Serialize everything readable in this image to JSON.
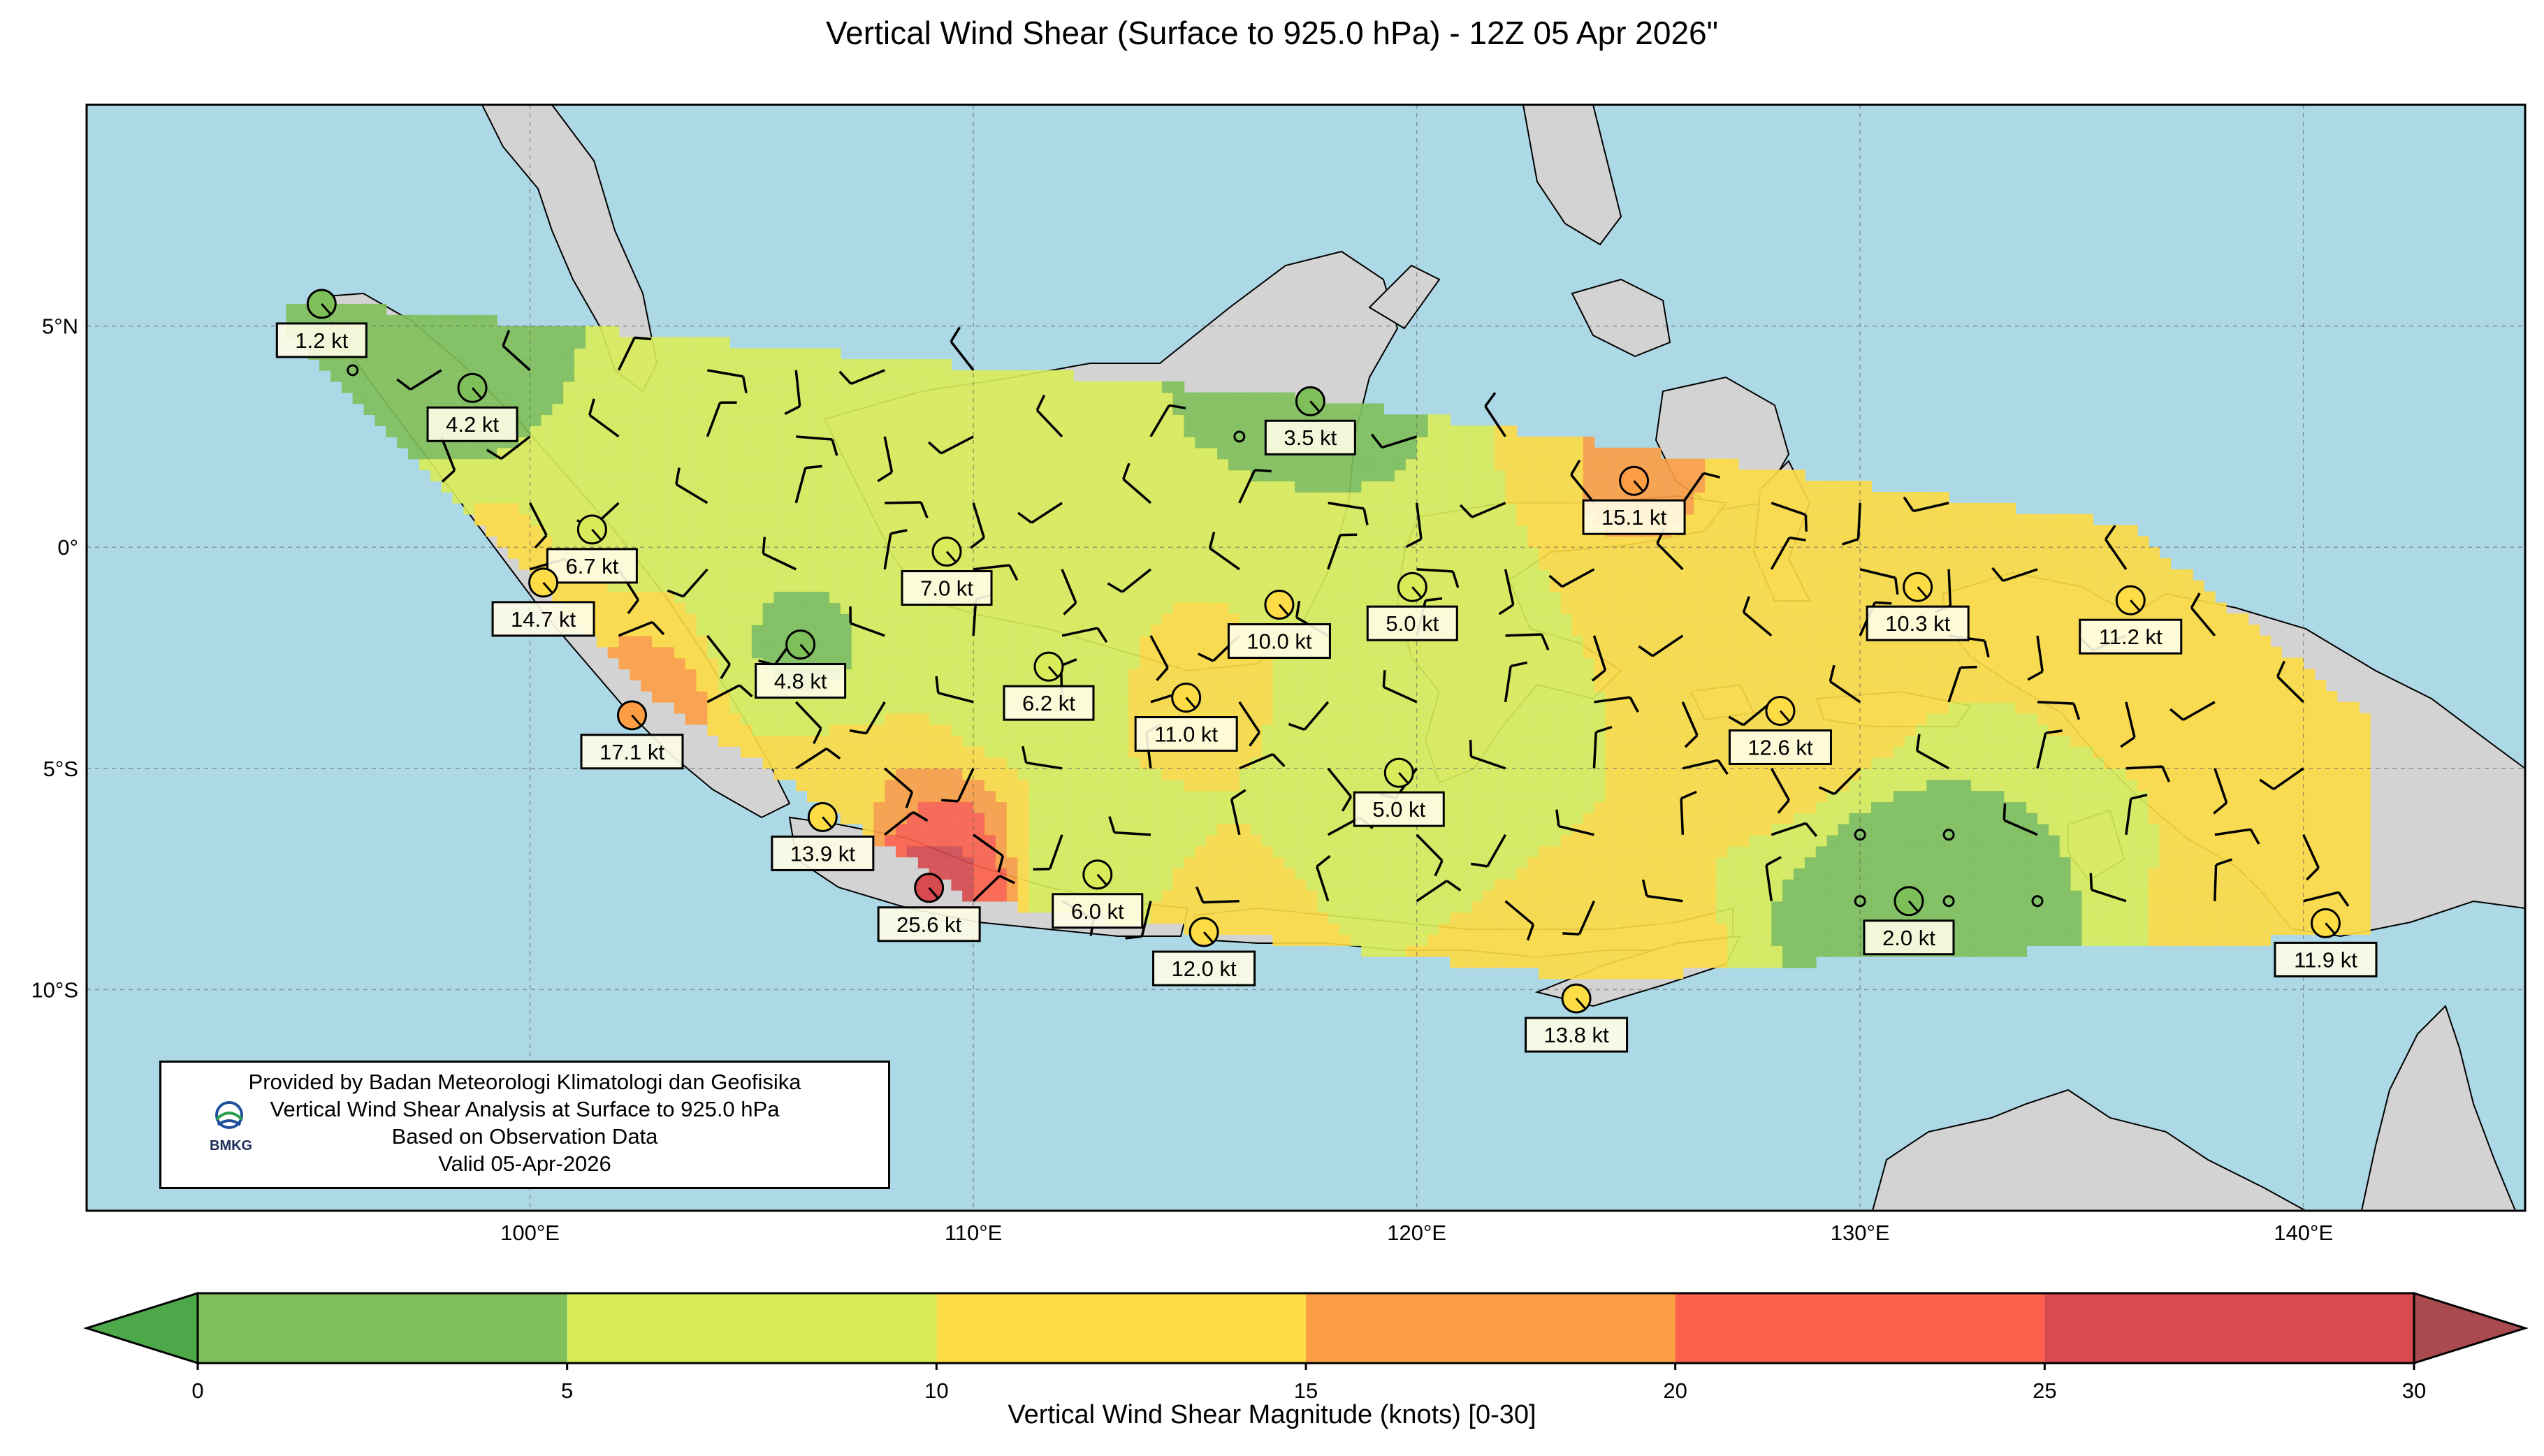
{
  "title": "Vertical Wind Shear (Surface to 925.0 hPa) - 12Z 05 Apr 2026\"",
  "map": {
    "lon_range": [
      90,
      145
    ],
    "lat_range": [
      -15,
      10
    ],
    "lon_ticks": [
      {
        "lon": 100,
        "label": "100°E"
      },
      {
        "lon": 110,
        "label": "110°E"
      },
      {
        "lon": 120,
        "label": "120°E"
      },
      {
        "lon": 130,
        "label": "130°E"
      },
      {
        "lon": 140,
        "label": "140°E"
      }
    ],
    "lat_ticks": [
      {
        "lat": 5,
        "label": "5°N"
      },
      {
        "lat": 0,
        "label": "0°"
      },
      {
        "lat": -5,
        "label": "5°S"
      },
      {
        "lat": -10,
        "label": "10°S"
      }
    ],
    "ocean_color": "#add8e6",
    "land_color": "#d3d3d3"
  },
  "stations": [
    {
      "lon": 95.3,
      "lat": 5.5,
      "value": 1.2,
      "label": "1.2 kt"
    },
    {
      "lon": 98.7,
      "lat": 3.6,
      "value": 4.2,
      "label": "4.2 kt"
    },
    {
      "lon": 101.4,
      "lat": 0.4,
      "value": 6.7,
      "label": "6.7 kt"
    },
    {
      "lon": 100.3,
      "lat": -0.8,
      "value": 14.7,
      "label": "14.7 kt"
    },
    {
      "lon": 102.3,
      "lat": -3.8,
      "value": 17.1,
      "label": "17.1 kt"
    },
    {
      "lon": 106.1,
      "lat": -2.2,
      "value": 4.8,
      "label": "4.8 kt"
    },
    {
      "lon": 106.6,
      "lat": -6.1,
      "value": 13.9,
      "label": "13.9 kt"
    },
    {
      "lon": 109.0,
      "lat": -7.7,
      "value": 25.6,
      "label": "25.6 kt"
    },
    {
      "lon": 109.4,
      "lat": -0.1,
      "value": 7.0,
      "label": "7.0 kt"
    },
    {
      "lon": 111.7,
      "lat": -2.7,
      "value": 6.2,
      "label": "6.2 kt"
    },
    {
      "lon": 112.8,
      "lat": -7.4,
      "value": 6.0,
      "label": "6.0 kt"
    },
    {
      "lon": 114.8,
      "lat": -3.4,
      "value": 11.0,
      "label": "11.0 kt"
    },
    {
      "lon": 115.2,
      "lat": -8.7,
      "value": 12.0,
      "label": "12.0 kt"
    },
    {
      "lon": 116.9,
      "lat": -1.3,
      "value": 10.0,
      "label": "10.0 kt"
    },
    {
      "lon": 117.6,
      "lat": 3.3,
      "value": 3.5,
      "label": "3.5 kt"
    },
    {
      "lon": 119.9,
      "lat": -0.9,
      "value": 5.0,
      "label": "5.0 kt"
    },
    {
      "lon": 119.6,
      "lat": -5.1,
      "value": 5.0,
      "label": "5.0 kt"
    },
    {
      "lon": 123.6,
      "lat": -10.2,
      "value": 13.8,
      "label": "13.8 kt"
    },
    {
      "lon": 124.9,
      "lat": 1.5,
      "value": 15.1,
      "label": "15.1 kt"
    },
    {
      "lon": 128.2,
      "lat": -3.7,
      "value": 12.6,
      "label": "12.6 kt"
    },
    {
      "lon": 131.3,
      "lat": -0.9,
      "value": 10.3,
      "label": "10.3 kt"
    },
    {
      "lon": 131.1,
      "lat": -8.0,
      "value": 2.0,
      "label": "2.0 kt"
    },
    {
      "lon": 136.1,
      "lat": -1.2,
      "value": 11.2,
      "label": "11.2 kt"
    },
    {
      "lon": 140.5,
      "lat": -8.5,
      "value": 11.9,
      "label": "11.9 kt"
    }
  ],
  "info_box": {
    "lines": [
      "Provided by Badan Meteorologi Klimatologi dan Geofisika",
      "Vertical Wind Shear Analysis at Surface to 925.0 hPa",
      "Based on Observation Data",
      "Valid 05-Apr-2026"
    ],
    "logo_text": "BMKG"
  },
  "colorbar": {
    "label": "Vertical Wind Shear Magnitude (knots) [0-30]",
    "ticks": [
      "0",
      "5",
      "10",
      "15",
      "20",
      "25",
      "30"
    ],
    "bins": [
      {
        "from": 0,
        "to": 5,
        "color": "#7fbf5a"
      },
      {
        "from": 5,
        "to": 10,
        "color": "#d8ec5a"
      },
      {
        "from": 10,
        "to": 15,
        "color": "#fddc45"
      },
      {
        "from": 15,
        "to": 20,
        "color": "#fd9e45"
      },
      {
        "from": 20,
        "to": 25,
        "color": "#fd604b"
      },
      {
        "from": 25,
        "to": 30,
        "color": "#d64a50"
      }
    ],
    "under_color": "#4da84a",
    "over_color": "#a84a4e"
  }
}
